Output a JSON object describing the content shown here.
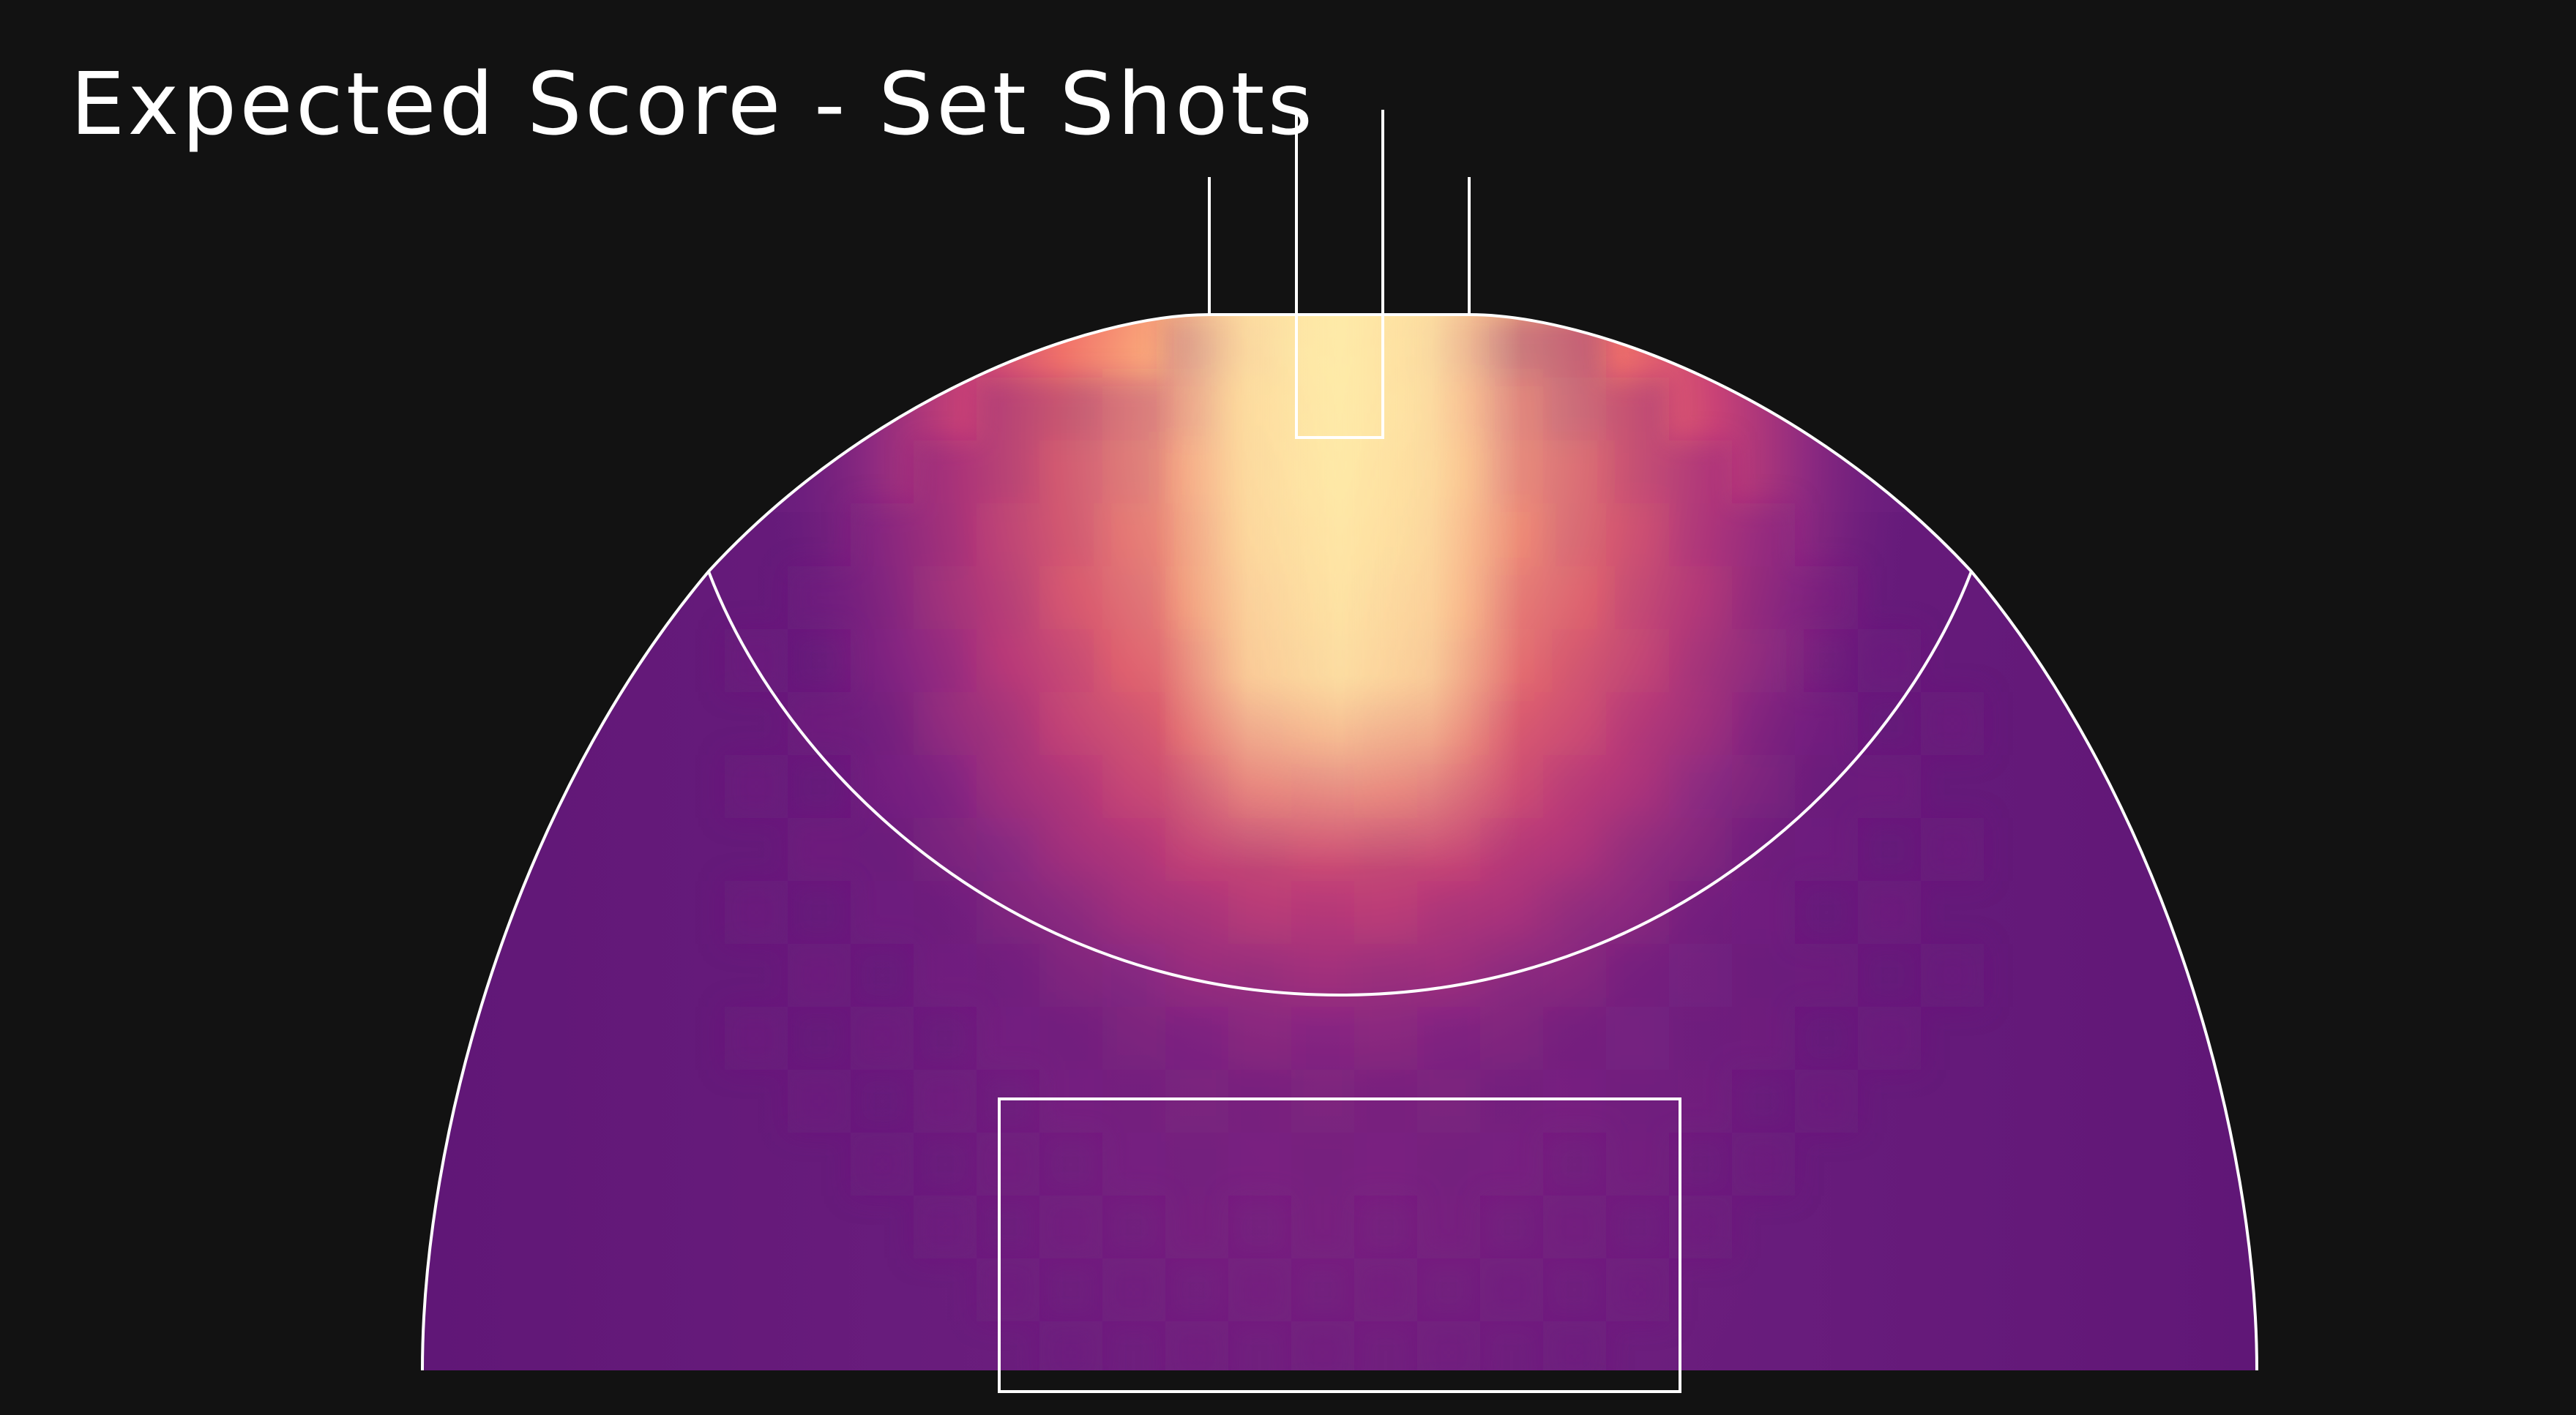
{
  "chart_data": {
    "type": "heatmap",
    "title": "Expected Score - Set Shots",
    "subject": "AFL forward half (oval) with goal posts; colour intensity encodes expected score per set shot",
    "colormap": [
      "#5a1574",
      "#7a2280",
      "#b6387a",
      "#e9566a",
      "#f98b64",
      "#fdc189",
      "#feeaa8"
    ],
    "background_color": "#121212",
    "line_color": "#ffffff",
    "value_range": [
      0,
      1
    ],
    "hotspot": "centre directly in front of goals, within the 50m arc",
    "low_region": "wide angles and beyond the 50m arc",
    "legend": "none",
    "axes": "none",
    "grid": false
  }
}
